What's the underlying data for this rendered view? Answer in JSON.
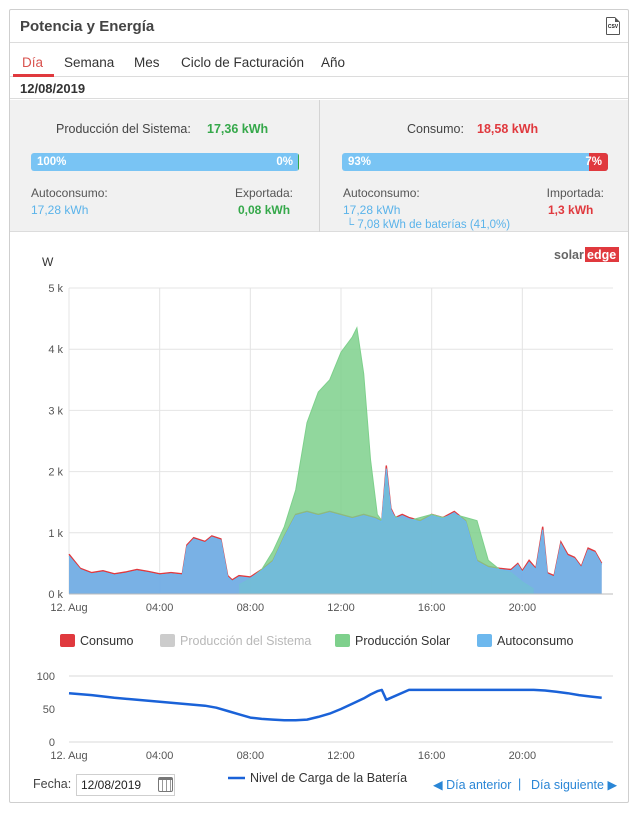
{
  "header": {
    "title": "Potencia y Energía",
    "csv_label": "CSV"
  },
  "tabs": [
    {
      "label": "Día"
    },
    {
      "label": "Semana"
    },
    {
      "label": "Mes"
    },
    {
      "label": "Ciclo de Facturación"
    },
    {
      "label": "Año"
    }
  ],
  "current_date": "12/08/2019",
  "production": {
    "label": "Producción del Sistema:",
    "value": "17,36 kWh",
    "bar_left_label": "100%",
    "bar_right_label": "0%",
    "self_fraction": 0.995,
    "self_label": "Autoconsumo:",
    "self_value": "17,28 kWh",
    "export_label": "Exportada:",
    "export_value": "0,08 kWh"
  },
  "consumption": {
    "label": "Consumo:",
    "value": "18,58 kWh",
    "bar_left_label": "93%",
    "bar_right_label": "7%",
    "self_fraction": 0.93,
    "self_label": "Autoconsumo:",
    "self_value": "17,28 kWh",
    "battery_note": "└ 7,08 kWh de baterías (41,0%)",
    "import_label": "Importada:",
    "import_value": "1,3 kWh"
  },
  "brand": {
    "solar": "solar",
    "edge": "edge"
  },
  "colors": {
    "consumo": "#e0393e",
    "produccion_sistema": "#cccccc",
    "produccion_solar": "#7ed08c",
    "autoconsumo": "#6db8ee",
    "battery_line": "#1a62d8"
  },
  "chart_data": [
    {
      "type": "area",
      "ylabel": "W",
      "x_unit": "hour",
      "xlim": [
        0,
        24
      ],
      "ylim": [
        0,
        5000
      ],
      "ytick_labels": [
        "0 k",
        "1 k",
        "2 k",
        "3 k",
        "4 k",
        "5 k"
      ],
      "xtick_labels": [
        "12. Aug",
        "04:00",
        "08:00",
        "12:00",
        "16:00",
        "20:00"
      ],
      "legend": {
        "placement": "bottom"
      },
      "series": [
        {
          "name": "Consumo",
          "x": [
            0,
            0.5,
            1.0,
            1.5,
            2.0,
            2.5,
            3.0,
            3.5,
            4.0,
            4.5,
            5.0,
            5.2,
            5.5,
            6.0,
            6.3,
            6.7,
            7.0,
            7.2,
            7.5,
            8.0,
            8.5,
            9.0,
            9.5,
            10.0,
            10.5,
            11.0,
            11.5,
            12.0,
            12.5,
            13.0,
            13.5,
            13.8,
            14.0,
            14.2,
            14.4,
            14.7,
            15.0,
            15.5,
            16.0,
            16.5,
            17.0,
            17.5,
            18.0,
            18.5,
            19.0,
            19.5,
            19.8,
            20.0,
            20.3,
            20.6,
            20.9,
            21.1,
            21.4,
            21.7,
            22.0,
            22.3,
            22.6,
            22.9,
            23.2,
            23.5
          ],
          "y": [
            650,
            420,
            350,
            380,
            330,
            360,
            400,
            370,
            330,
            350,
            330,
            800,
            920,
            860,
            950,
            900,
            300,
            230,
            300,
            280,
            400,
            550,
            950,
            1300,
            1350,
            1300,
            1350,
            1300,
            1250,
            1300,
            1250,
            1200,
            2100,
            1400,
            1250,
            1300,
            1250,
            1200,
            1300,
            1250,
            1350,
            1200,
            550,
            450,
            420,
            400,
            500,
            380,
            550,
            420,
            1100,
            350,
            300,
            850,
            650,
            600,
            450,
            750,
            700,
            500
          ]
        },
        {
          "name": "Producción del Sistema",
          "x": [],
          "y": []
        },
        {
          "name": "Producción Solar",
          "x": [
            7.5,
            8.0,
            8.5,
            9.0,
            9.5,
            10.0,
            10.5,
            11.0,
            11.5,
            12.0,
            12.5,
            12.7,
            13.0,
            13.3,
            13.6,
            13.8,
            14.0,
            14.2,
            14.5,
            15.0,
            15.5,
            16.0,
            16.5,
            17.0,
            17.5,
            18.0,
            18.5,
            19.0,
            19.5,
            20.0,
            20.5
          ],
          "y": [
            150,
            250,
            400,
            700,
            1100,
            1700,
            2800,
            3300,
            3500,
            3950,
            4200,
            4350,
            3600,
            2200,
            1300,
            1200,
            2000,
            1300,
            1250,
            1200,
            1250,
            1300,
            1250,
            1300,
            1250,
            1200,
            550,
            400,
            350,
            200,
            80
          ]
        },
        {
          "name": "Autoconsumo",
          "x": [
            0,
            0.5,
            1.0,
            1.5,
            2.0,
            2.5,
            3.0,
            3.5,
            4.0,
            4.5,
            5.0,
            5.2,
            5.5,
            6.0,
            6.3,
            6.7,
            7.0,
            7.2,
            7.5,
            8.0,
            8.5,
            9.0,
            9.5,
            10.0,
            10.5,
            11.0,
            11.5,
            12.0,
            12.5,
            13.0,
            13.5,
            13.8,
            14.0,
            14.2,
            14.4,
            14.7,
            15.0,
            15.5,
            16.0,
            16.5,
            17.0,
            17.5,
            18.0,
            18.5,
            19.0,
            19.5,
            19.8,
            20.0,
            20.3,
            20.6,
            20.9,
            21.1,
            21.4,
            21.7,
            22.0,
            22.3,
            22.6,
            22.9,
            23.2,
            23.5
          ],
          "y": [
            620,
            400,
            330,
            360,
            310,
            340,
            380,
            350,
            310,
            330,
            310,
            780,
            900,
            840,
            930,
            880,
            280,
            210,
            280,
            260,
            380,
            530,
            930,
            1280,
            1330,
            1280,
            1330,
            1280,
            1230,
            1280,
            1230,
            1180,
            2050,
            1380,
            1230,
            1280,
            1230,
            1180,
            1280,
            1230,
            1330,
            1180,
            530,
            430,
            400,
            380,
            480,
            360,
            520,
            400,
            1050,
            330,
            280,
            820,
            620,
            580,
            430,
            720,
            680,
            480
          ]
        }
      ]
    },
    {
      "type": "line",
      "xlim": [
        0,
        24
      ],
      "ylim": [
        0,
        100
      ],
      "ytick_labels": [
        "0",
        "50",
        "100"
      ],
      "xtick_labels": [
        "12. Aug",
        "04:00",
        "08:00",
        "12:00",
        "16:00",
        "20:00"
      ],
      "legend": {
        "placement": "bottom"
      },
      "series": [
        {
          "name": "Nivel de Carga de la Batería",
          "x": [
            0,
            1,
            2,
            3,
            4,
            5,
            6,
            6.5,
            7,
            7.5,
            8,
            8.5,
            9,
            9.5,
            10,
            10.5,
            11,
            11.5,
            12,
            12.5,
            13,
            13.3,
            13.6,
            13.8,
            14.0,
            15,
            16,
            17,
            18,
            19,
            20,
            20.5,
            21,
            21.5,
            22,
            22.5,
            23,
            23.5
          ],
          "y": [
            74,
            71,
            67,
            64,
            61,
            58,
            55,
            52,
            47,
            42,
            37,
            35,
            34,
            33,
            33,
            34,
            38,
            43,
            50,
            58,
            66,
            72,
            77,
            79,
            64,
            79,
            79,
            79,
            79,
            79,
            79,
            79,
            78,
            76,
            74,
            71,
            69,
            67
          ]
        }
      ]
    }
  ],
  "legend_main": [
    {
      "name": "Consumo",
      "color": "#e0393e",
      "muted": false
    },
    {
      "name": "Producción del Sistema",
      "color": "#cccccc",
      "muted": true
    },
    {
      "name": "Producción Solar",
      "color": "#7ed08c",
      "muted": false
    },
    {
      "name": "Autoconsumo",
      "color": "#6db8ee",
      "muted": false
    }
  ],
  "footer": {
    "date_label": "Fecha:",
    "date_value": "12/08/2019",
    "prev_label": "Día anterior",
    "separator": "|",
    "next_label": "Día siguiente"
  }
}
